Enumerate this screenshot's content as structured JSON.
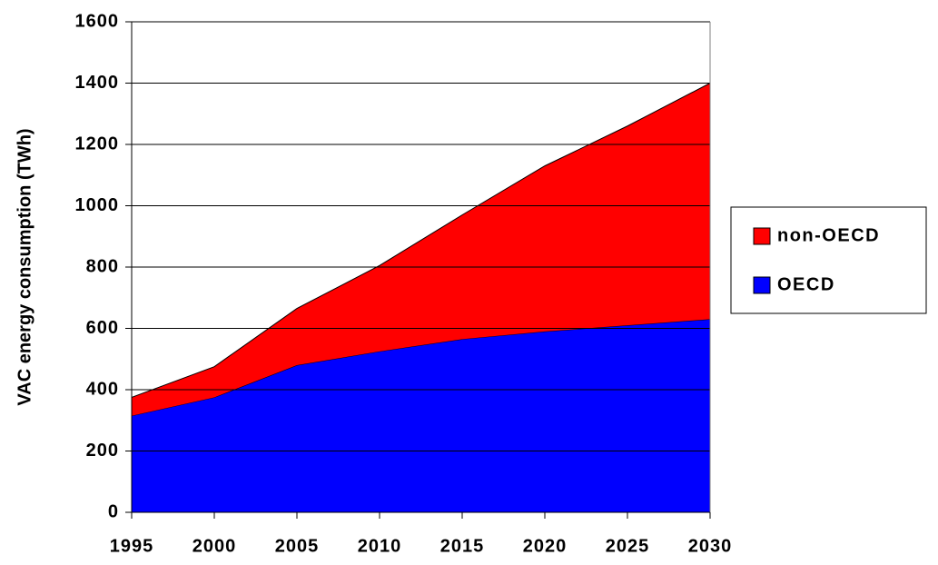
{
  "chart_data": {
    "type": "area",
    "stacked": true,
    "y_label": "VAC energy consumption (TWh)",
    "x": [
      1995,
      2000,
      2005,
      2010,
      2015,
      2020,
      2025,
      2030
    ],
    "xlim": [
      1995,
      2030
    ],
    "xticks": [
      1995,
      2000,
      2005,
      2010,
      2015,
      2020,
      2025,
      2030
    ],
    "ylim": [
      0,
      1600
    ],
    "yticks": [
      0,
      200,
      400,
      600,
      800,
      1000,
      1200,
      1400,
      1600
    ],
    "grid": true,
    "legend": "right",
    "series": [
      {
        "name": "OECD",
        "color": "#0000ff",
        "values": [
          315,
          375,
          480,
          525,
          565,
          590,
          610,
          630
        ]
      },
      {
        "name": "non-OECD",
        "color": "#ff0000",
        "values": [
          60,
          100,
          185,
          280,
          405,
          540,
          650,
          770
        ]
      }
    ]
  }
}
